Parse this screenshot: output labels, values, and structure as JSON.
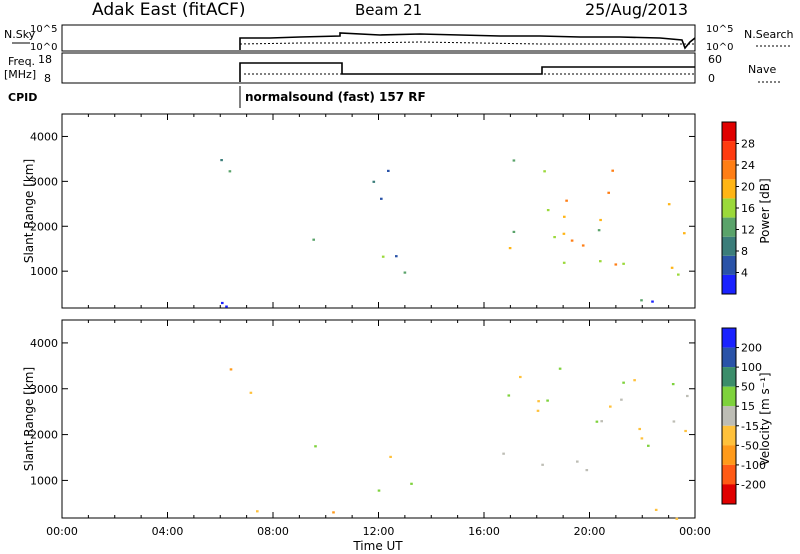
{
  "header": {
    "station": "Adak East (fitACF)",
    "beam": "Beam 21",
    "date": "25/Aug/2013"
  },
  "summary_panels": {
    "nsky_label": "N.Sky",
    "nsky_ticks": [
      "10^5",
      "10^0"
    ],
    "nsearch_label": "N.Search",
    "nsearch_ticks": [
      "10^5",
      "10^0"
    ],
    "freq_label_1": "Freq.",
    "freq_label_2": "[MHz]",
    "freq_ticks": [
      "18",
      "8"
    ],
    "nave_label": "Nave",
    "nave_ticks": [
      "60",
      "0"
    ],
    "cpid_label": "CPID",
    "cpid_text": "normalsound (fast) 157 RF"
  },
  "colors": {
    "power": [
      "#1a22ff",
      "#2a53a8",
      "#3b7d7a",
      "#5aa36a",
      "#9bd93a",
      "#ffb515",
      "#ff7e15",
      "#ff3b10",
      "#e00000"
    ],
    "velocity": [
      "#1a22ff",
      "#2a53a8",
      "#3b8d6a",
      "#7ed23c",
      "#bdbdb5",
      "#ffc13b",
      "#ff9a1a",
      "#ff5a15",
      "#e00000"
    ],
    "ground_scatter": "#bdbdb5"
  },
  "chart_data": [
    {
      "type": "heatmap",
      "title": "",
      "xlabel": "",
      "ylabel": "Slant Range [km]",
      "x_ticks": [
        "00:00",
        "04:00",
        "08:00",
        "12:00",
        "16:00",
        "20:00",
        "00:00"
      ],
      "y_ticks": [
        "1000",
        "2000",
        "3000",
        "4000"
      ],
      "xlim_hours": [
        0,
        24
      ],
      "ylim_km": [
        180,
        4500
      ],
      "colorbar": {
        "label": "Power [dB]",
        "ticks": [
          "4",
          "8",
          "12",
          "16",
          "20",
          "24",
          "28"
        ],
        "range": [
          0,
          30
        ]
      },
      "echo_regions": [
        {
          "t0": 6.0,
          "t1": 7.5,
          "r0": 2300,
          "r1": 3600,
          "value": 10
        },
        {
          "t0": 9.0,
          "t1": 10.5,
          "r0": 1500,
          "r1": 1800,
          "value": 8
        },
        {
          "t0": 10.5,
          "t1": 13.5,
          "r0": 800,
          "r1": 1600,
          "value": 12
        },
        {
          "t0": 10.2,
          "t1": 12.5,
          "r0": 2500,
          "r1": 3600,
          "value": 4
        },
        {
          "t0": 16.5,
          "t1": 24.0,
          "r0": 800,
          "r1": 3500,
          "value": 16
        },
        {
          "t0": 6.0,
          "t1": 24.0,
          "r0": 180,
          "r1": 400,
          "value": 6
        }
      ]
    },
    {
      "type": "heatmap",
      "title": "",
      "xlabel": "Time UT",
      "ylabel": "Slant Range [km]",
      "x_ticks": [
        "00:00",
        "04:00",
        "08:00",
        "12:00",
        "16:00",
        "20:00",
        "00:00"
      ],
      "y_ticks": [
        "1000",
        "2000",
        "3000",
        "4000"
      ],
      "xlim_hours": [
        0,
        24
      ],
      "ylim_km": [
        180,
        4500
      ],
      "colorbar": {
        "label": "Velocity [m s⁻¹]",
        "ticks": [
          "200",
          "100",
          "50",
          "15",
          "-15",
          "-50",
          "-100",
          "-200"
        ],
        "range": [
          -250,
          250
        ]
      },
      "echo_regions": [
        {
          "t0": 6.0,
          "t1": 7.5,
          "r0": 2300,
          "r1": 3600,
          "value": -60
        },
        {
          "t0": 9.0,
          "t1": 10.5,
          "r0": 1500,
          "r1": 1800,
          "value": 120
        },
        {
          "t0": 10.5,
          "t1": 13.5,
          "r0": 800,
          "r1": 1600,
          "value": 0
        },
        {
          "t0": 16.5,
          "t1": 24.0,
          "r0": 800,
          "r1": 3500,
          "value": 0
        },
        {
          "t0": 6.0,
          "t1": 24.0,
          "r0": 180,
          "r1": 400,
          "value": -80
        }
      ]
    }
  ]
}
